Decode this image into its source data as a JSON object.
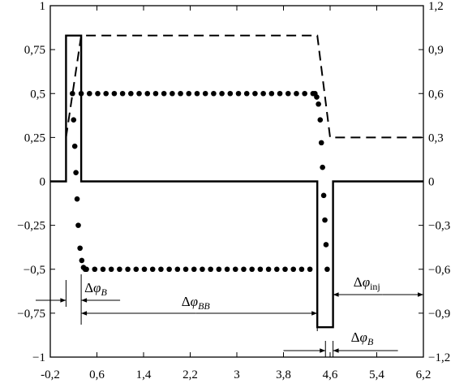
{
  "chart_data": {
    "type": "line",
    "title": "",
    "xlabel": "",
    "ylabel": "",
    "y2label": "",
    "grid": false,
    "legend": "none",
    "xlim": [
      -0.2,
      6.2
    ],
    "ylim": [
      -1,
      1
    ],
    "y2lim": [
      -1.2,
      1.2
    ],
    "x_ticks": [
      "-0,2",
      "0,6",
      "1,4",
      "2,2",
      "3",
      "3,8",
      "4,6",
      "5,4",
      "6,2"
    ],
    "x_tick_values": [
      -0.2,
      0.6,
      1.4,
      2.2,
      3.0,
      3.8,
      4.6,
      5.4,
      6.2
    ],
    "y_ticks": [
      "1",
      "0,75",
      "0,5",
      "0,25",
      "0",
      "−0,25",
      "−0,5",
      "−0,75",
      "−1"
    ],
    "y_tick_values": [
      1,
      0.75,
      0.5,
      0.25,
      0,
      -0.25,
      -0.5,
      -0.75,
      -1
    ],
    "y2_ticks": [
      "1,2",
      "0,9",
      "0,6",
      "0,3",
      "0",
      "−0,3",
      "−0,6",
      "−0,9",
      "−1,2"
    ],
    "y2_tick_values": [
      1.2,
      0.9,
      0.6,
      0.3,
      0,
      -0.3,
      -0.6,
      -0.9,
      -1.2
    ],
    "series": [
      {
        "style": "solid",
        "axis": "left",
        "x": [
          -0.2,
          0.07,
          0.07,
          0.33,
          0.33,
          4.38,
          4.38,
          4.65,
          4.65,
          6.2
        ],
        "y": [
          0,
          0,
          0.83,
          0.83,
          0,
          0,
          -0.83,
          -0.83,
          0,
          0
        ]
      },
      {
        "style": "dashed",
        "axis": "left",
        "x": [
          0.07,
          0.33,
          4.38,
          4.6,
          6.2
        ],
        "y": [
          0.25,
          0.83,
          0.83,
          0.25,
          0.25
        ]
      },
      {
        "style": "dotted",
        "axis": "left",
        "x": [
          0.18,
          0.2,
          0.22,
          0.24,
          0.26,
          0.28,
          0.31,
          0.34,
          0.37,
          0.4,
          4.34,
          4.37,
          4.4,
          4.43,
          4.45,
          4.47,
          4.49,
          4.51,
          4.53,
          4.55
        ],
        "y": [
          0.5,
          0.35,
          0.2,
          0.05,
          -0.1,
          -0.25,
          -0.38,
          -0.45,
          -0.49,
          -0.5,
          0.5,
          0.48,
          0.44,
          0.35,
          0.22,
          0.08,
          -0.08,
          -0.22,
          -0.36,
          -0.5
        ]
      }
    ],
    "annotations": [
      {
        "main": "Δ",
        "symbol": "φ",
        "sub": "B",
        "sub_italic": true
      },
      {
        "main": "Δ",
        "symbol": "φ",
        "sub": "BB",
        "sub_italic": true
      },
      {
        "main": "Δ",
        "symbol": "φ",
        "sub": "inj",
        "sub_italic": false
      },
      {
        "main": "Δ",
        "symbol": "φ",
        "sub": "B",
        "sub_italic": true
      }
    ]
  }
}
